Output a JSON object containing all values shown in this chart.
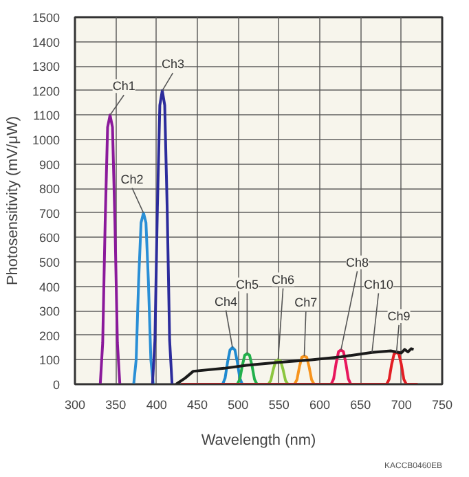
{
  "chart_data": {
    "type": "line",
    "xlabel": "Wavelength (nm)",
    "ylabel": "Photosensitivity (mV/μW)",
    "xlim": [
      300,
      750
    ],
    "ylim": [
      0,
      1500
    ],
    "xticks": [
      300,
      350,
      400,
      450,
      500,
      550,
      600,
      650,
      700,
      750
    ],
    "yticks": [
      0,
      100,
      200,
      300,
      400,
      500,
      600,
      700,
      800,
      900,
      1000,
      1100,
      1200,
      1300,
      1400,
      1500
    ],
    "grid": true,
    "marker": "none",
    "line_style": "solid",
    "series": [
      {
        "name": "Ch1",
        "color": "#8b1a9b",
        "x": [
          331,
          334,
          337,
          340,
          343,
          346,
          349,
          352,
          355
        ],
        "values": [
          0,
          170,
          660,
          1050,
          1100,
          1050,
          660,
          170,
          0
        ]
      },
      {
        "name": "Ch2",
        "color": "#2a8fd6",
        "x": [
          372,
          375,
          378,
          381,
          384,
          387,
          390,
          393,
          396
        ],
        "values": [
          0,
          100,
          420,
          660,
          700,
          660,
          420,
          100,
          0
        ]
      },
      {
        "name": "Ch3",
        "color": "#2c2c9c",
        "x": [
          395,
          398,
          401,
          404,
          407,
          410,
          413,
          416,
          419
        ],
        "values": [
          0,
          180,
          720,
          1140,
          1200,
          1140,
          720,
          180,
          0
        ]
      },
      {
        "name": "Ch4",
        "color": "#1f8ad0",
        "x": [
          481,
          484,
          487,
          490,
          493,
          496,
          499,
          502,
          505
        ],
        "values": [
          0,
          25,
          90,
          140,
          150,
          140,
          90,
          25,
          0
        ]
      },
      {
        "name": "Ch5",
        "color": "#22b04b",
        "x": [
          499,
          502,
          505,
          508,
          511,
          514,
          517,
          520,
          523
        ],
        "values": [
          0,
          20,
          75,
          118,
          125,
          118,
          75,
          20,
          0
        ]
      },
      {
        "name": "Ch6",
        "color": "#8cc63f",
        "x": [
          537,
          540,
          543,
          546,
          549,
          552,
          555,
          558,
          561
        ],
        "values": [
          0,
          15,
          60,
          95,
          100,
          95,
          60,
          15,
          0
        ]
      },
      {
        "name": "Ch7",
        "color": "#f7941d",
        "x": [
          569,
          572,
          575,
          578,
          581,
          584,
          587,
          590,
          593
        ],
        "values": [
          0,
          18,
          70,
          110,
          115,
          110,
          70,
          18,
          0
        ]
      },
      {
        "name": "Ch8",
        "color": "#e8175d",
        "x": [
          614,
          617,
          620,
          623,
          626,
          629,
          632,
          635,
          638
        ],
        "values": [
          0,
          22,
          85,
          133,
          140,
          133,
          85,
          22,
          0
        ]
      },
      {
        "name": "Ch9",
        "color": "#e31e24",
        "x": [
          430,
          682,
          685,
          688,
          691,
          694,
          697,
          700,
          703,
          706,
          720
        ],
        "values": [
          0,
          0,
          20,
          80,
          123,
          130,
          123,
          80,
          20,
          0,
          0
        ]
      },
      {
        "name": "Ch10",
        "color": "#1a1a1a",
        "x": [
          424,
          435,
          445,
          483,
          510,
          549,
          590,
          626,
          664,
          687,
          700,
          704,
          708,
          712,
          715
        ],
        "values": [
          0,
          25,
          53,
          65,
          77,
          89,
          100,
          112,
          130,
          136,
          128,
          142,
          132,
          145,
          142
        ]
      }
    ],
    "annotations": [
      "KACCB0460EB"
    ]
  }
}
